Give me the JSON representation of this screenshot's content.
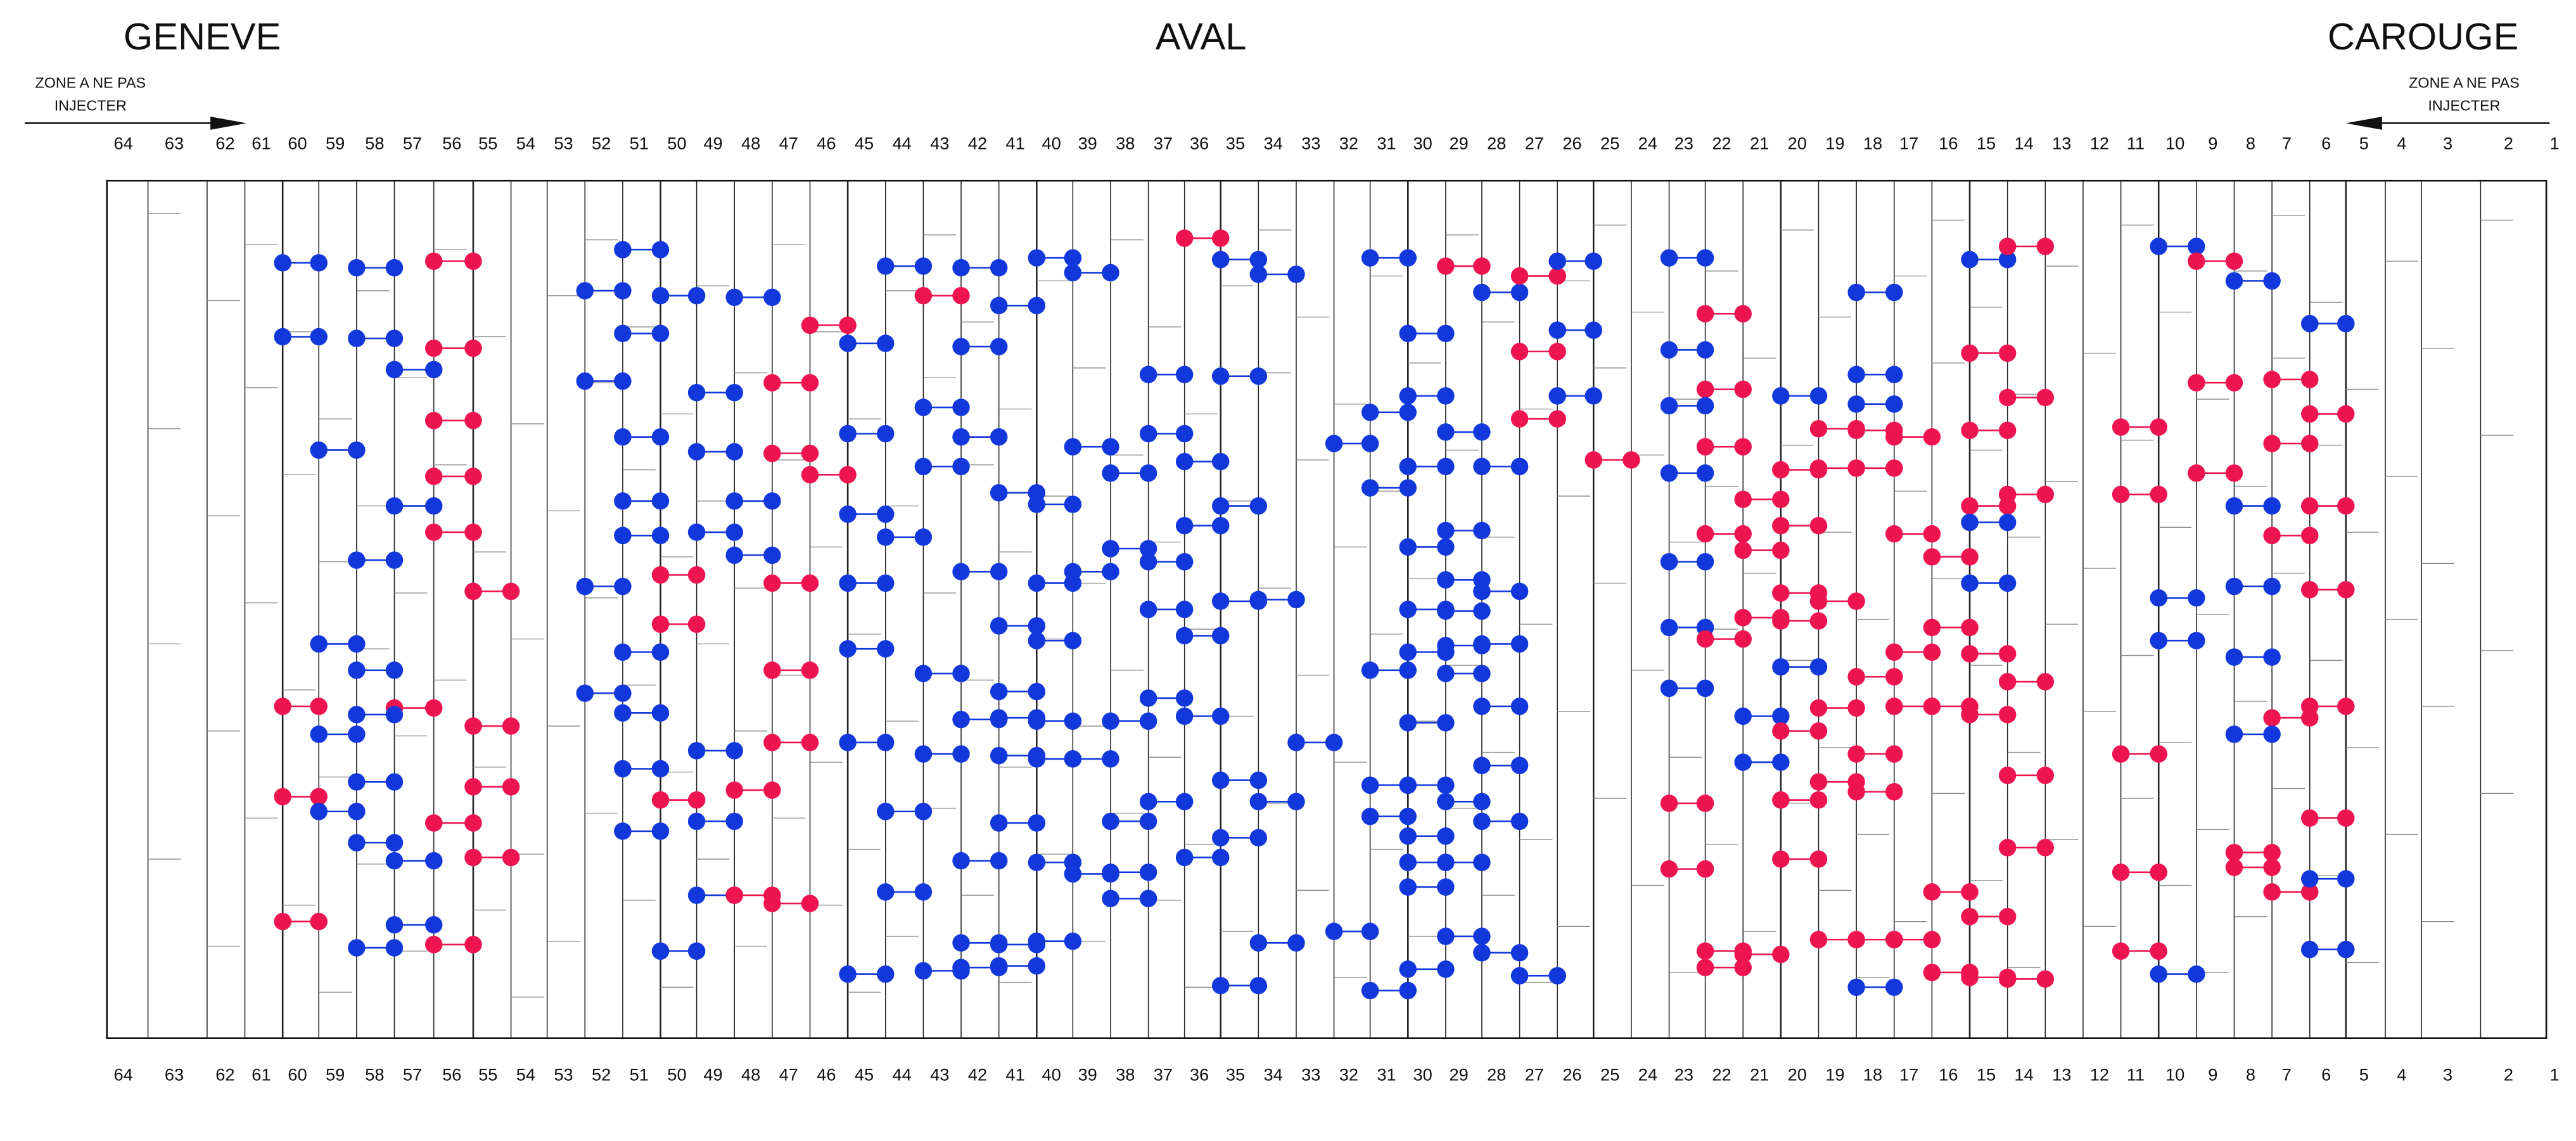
{
  "header": {
    "left": "GENEVE",
    "center": "AVAL",
    "right": "CAROUGE"
  },
  "zones": {
    "left": [
      "ZONE A NE PAS",
      "INJECTER"
    ],
    "right": [
      "ZONE A NE PAS",
      "INJECTER"
    ]
  },
  "columns": [
    64,
    63,
    62,
    61,
    60,
    59,
    58,
    57,
    56,
    55,
    54,
    53,
    52,
    51,
    50,
    49,
    48,
    47,
    46,
    45,
    44,
    43,
    42,
    41,
    40,
    39,
    38,
    37,
    36,
    35,
    34,
    33,
    32,
    31,
    30,
    29,
    28,
    27,
    26,
    25,
    24,
    23,
    22,
    21,
    20,
    19,
    18,
    17,
    16,
    15,
    14,
    13,
    12,
    11,
    10,
    9,
    8,
    7,
    6,
    5,
    4,
    3,
    2,
    1
  ]
}
